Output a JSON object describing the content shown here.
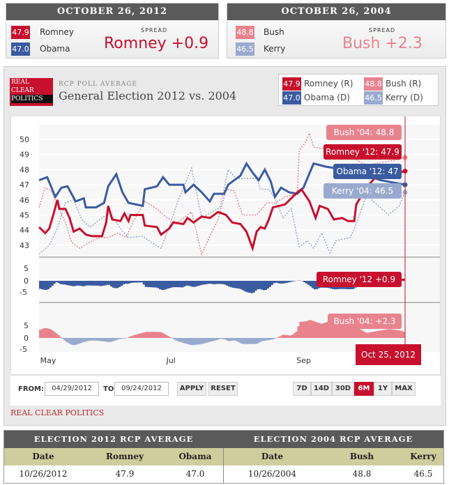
{
  "box2012": {
    "header": "OCTOBER 26, 2012",
    "r_val": "47.9",
    "r_name": "Romney",
    "d_val": "47.0",
    "d_name": "Obama",
    "spread_label": "SPREAD",
    "spread": "Romney +0.9"
  },
  "box2004": {
    "header": "OCTOBER 26, 2004",
    "r_val": "48.8",
    "r_name": "Bush",
    "d_val": "46.5",
    "d_name": "Kerry",
    "spread_label": "SPREAD",
    "spread": "Bush +2.3"
  },
  "panel": {
    "logo": [
      "REAL",
      "CLEAR",
      "POLITICS"
    ],
    "subtitle": "RCP POLL AVERAGE",
    "title": "General Election 2012 vs. 2004",
    "legend": [
      {
        "val": "47.9",
        "name": "Romney (R)",
        "color": "#c8102e"
      },
      {
        "val": "48.8",
        "name": "Bush (R)",
        "color": "#e8838e"
      },
      {
        "val": "47.0",
        "name": "Obama (D)",
        "color": "#3a5ba0"
      },
      {
        "val": "46.5",
        "name": "Kerry (D)",
        "color": "#9aaace"
      }
    ]
  },
  "controls": {
    "from_label": "FROM:",
    "from": "04/29/2012",
    "to_label": "TO:",
    "to": "09/24/2012",
    "apply": "APPLY",
    "reset": "RESET",
    "ranges": [
      "7D",
      "14D",
      "30D",
      "6M",
      "1Y",
      "MAX"
    ],
    "active_range": "6M"
  },
  "footer_link": "REAL CLEAR POLITICS",
  "table": {
    "h2012": "ELECTION 2012 RCP AVERAGE",
    "h2004": "ELECTION 2004 RCP AVERAGE",
    "cols": [
      "Date",
      "Romney",
      "Obama",
      "Date",
      "Bush",
      "Kerry"
    ],
    "row": [
      "10/26/2012",
      "47.9",
      "47.0",
      "10/26/2004",
      "48.8",
      "46.5"
    ]
  },
  "colors": {
    "romney": "#c8102e",
    "obama": "#3a5ba0",
    "bush": "#e8838e",
    "kerry": "#9aaace"
  },
  "chart_data": {
    "type": "line",
    "x_unit": "days since Apr 29",
    "xlim": [
      0,
      180
    ],
    "ylim": [
      42.3,
      50.5
    ],
    "yticks": [
      43,
      44,
      45,
      46,
      47,
      48,
      49,
      50
    ],
    "xticks": [
      {
        "label": "May",
        "day": 4
      },
      {
        "label": "Jul",
        "day": 66
      },
      {
        "label": "Sep",
        "day": 130
      }
    ],
    "spread_ticks": [
      "5",
      "0",
      "-5"
    ],
    "cursor_label": "Oct 25, 2012",
    "tooltips": {
      "bush": "Bush '04: 48.8",
      "romney": "Romney '12: 47.9",
      "obama": "Obama '12: 47",
      "kerry": "Kerry '04: 46.5",
      "romney_spread": "Romney '12 +0.9",
      "bush_spread": "Bush '04: +2.3"
    },
    "series": [
      {
        "name": "Obama '12",
        "key": "obama",
        "style": "solid",
        "points": [
          [
            0,
            47.3
          ],
          [
            4,
            47.5
          ],
          [
            8,
            46.2
          ],
          [
            11,
            46.8
          ],
          [
            14,
            46.9
          ],
          [
            18,
            45.9
          ],
          [
            22,
            46.1
          ],
          [
            23,
            45.5
          ],
          [
            28,
            45.5
          ],
          [
            32,
            45.8
          ],
          [
            34,
            46.9
          ],
          [
            38,
            47.7
          ],
          [
            41,
            46.5
          ],
          [
            44,
            45.8
          ],
          [
            51,
            45.6
          ],
          [
            52,
            46.7
          ],
          [
            58,
            46.9
          ],
          [
            61,
            47.5
          ],
          [
            64,
            47.0
          ],
          [
            71,
            47.0
          ],
          [
            72,
            46.5
          ],
          [
            76,
            47.0
          ],
          [
            80,
            46.5
          ],
          [
            84,
            45.9
          ],
          [
            86,
            46.4
          ],
          [
            91,
            46.4
          ],
          [
            93,
            47.0
          ],
          [
            99,
            47.6
          ],
          [
            102,
            48.4
          ],
          [
            105,
            47.8
          ],
          [
            108,
            47.3
          ],
          [
            111,
            48.0
          ],
          [
            114,
            47.2
          ],
          [
            116,
            46.2
          ],
          [
            119,
            46.8
          ],
          [
            123,
            46.5
          ],
          [
            127,
            46.4
          ],
          [
            130,
            46.8
          ],
          [
            135,
            48.4
          ],
          [
            141,
            48.2
          ],
          [
            154,
            47.9
          ],
          [
            168,
            47.3
          ],
          [
            180,
            47.0
          ]
        ]
      },
      {
        "name": "Romney '12",
        "key": "romney",
        "style": "solid",
        "points": [
          [
            0,
            44.2
          ],
          [
            3,
            43.8
          ],
          [
            5,
            44.1
          ],
          [
            7,
            45.0
          ],
          [
            9,
            46.0
          ],
          [
            10,
            45.4
          ],
          [
            13,
            45.4
          ],
          [
            15,
            44.8
          ],
          [
            17,
            43.9
          ],
          [
            20,
            44.1
          ],
          [
            23,
            43.7
          ],
          [
            26,
            43.6
          ],
          [
            31,
            43.6
          ],
          [
            33,
            44.5
          ],
          [
            34,
            45.6
          ],
          [
            36,
            44.7
          ],
          [
            40,
            44.6
          ],
          [
            42,
            45.1
          ],
          [
            44,
            44.6
          ],
          [
            45,
            45.0
          ],
          [
            51,
            45.0
          ],
          [
            52,
            44.3
          ],
          [
            58,
            44.2
          ],
          [
            60,
            43.7
          ],
          [
            64,
            44.1
          ],
          [
            66,
            44.5
          ],
          [
            71,
            44.4
          ],
          [
            73,
            44.8
          ],
          [
            76,
            44.5
          ],
          [
            80,
            44.9
          ],
          [
            84,
            44.8
          ],
          [
            88,
            45.2
          ],
          [
            92,
            45.0
          ],
          [
            95,
            44.5
          ],
          [
            99,
            44.4
          ],
          [
            102,
            43.9
          ],
          [
            105,
            42.8
          ],
          [
            107,
            43.9
          ],
          [
            109,
            44.2
          ],
          [
            111,
            44.1
          ],
          [
            113,
            44.7
          ],
          [
            115,
            45.5
          ],
          [
            118,
            45.6
          ],
          [
            121,
            45.7
          ],
          [
            127,
            46.5
          ],
          [
            129,
            46.7
          ],
          [
            133,
            45.9
          ],
          [
            136,
            44.8
          ],
          [
            138,
            45.6
          ],
          [
            142,
            45.4
          ],
          [
            145,
            44.7
          ],
          [
            149,
            44.8
          ],
          [
            152,
            44.6
          ],
          [
            155,
            44.6
          ],
          [
            156,
            45.7
          ],
          [
            161,
            46.8
          ],
          [
            168,
            47.9
          ],
          [
            177,
            47.8
          ],
          [
            180,
            47.9
          ]
        ]
      },
      {
        "name": "Bush '04",
        "key": "bush",
        "style": "dotted",
        "points": [
          [
            0,
            45.5
          ],
          [
            3,
            46.8
          ],
          [
            6,
            46.6
          ],
          [
            10,
            45.3
          ],
          [
            13,
            44.5
          ],
          [
            16,
            43.2
          ],
          [
            20,
            42.8
          ],
          [
            25,
            43.2
          ],
          [
            29,
            43.5
          ],
          [
            34,
            43.5
          ],
          [
            39,
            43.8
          ],
          [
            43,
            43.5
          ],
          [
            46,
            44.5
          ],
          [
            52,
            45.9
          ],
          [
            58,
            45.4
          ],
          [
            63,
            44.8
          ],
          [
            68,
            44.5
          ],
          [
            75,
            45.2
          ],
          [
            80,
            42.4
          ],
          [
            84,
            43.6
          ],
          [
            88,
            44.7
          ],
          [
            92,
            46.7
          ],
          [
            96,
            46.6
          ],
          [
            100,
            45.0
          ],
          [
            107,
            45.0
          ],
          [
            112,
            45.8
          ],
          [
            116,
            45.8
          ],
          [
            121,
            46.2
          ],
          [
            127,
            46.4
          ],
          [
            128,
            49.3
          ],
          [
            131,
            49.8
          ],
          [
            133,
            50.4
          ],
          [
            135,
            49.5
          ],
          [
            148,
            49.2
          ],
          [
            161,
            48.3
          ],
          [
            174,
            48.6
          ],
          [
            180,
            48.8
          ]
        ]
      },
      {
        "name": "Kerry '04",
        "key": "kerry",
        "style": "dotted",
        "points": [
          [
            0,
            42.4
          ],
          [
            5,
            43.0
          ],
          [
            9,
            44.1
          ],
          [
            13,
            45.8
          ],
          [
            17,
            46.0
          ],
          [
            21,
            44.7
          ],
          [
            25,
            44.2
          ],
          [
            30,
            44.7
          ],
          [
            35,
            45.2
          ],
          [
            40,
            44.1
          ],
          [
            44,
            43.5
          ],
          [
            51,
            43.6
          ],
          [
            55,
            43.2
          ],
          [
            60,
            42.8
          ],
          [
            64,
            44.2
          ],
          [
            68,
            45.8
          ],
          [
            75,
            48.1
          ],
          [
            80,
            44.8
          ],
          [
            85,
            45.2
          ],
          [
            89,
            45.5
          ],
          [
            93,
            48.0
          ],
          [
            97,
            47.4
          ],
          [
            107,
            47.4
          ],
          [
            109,
            46.7
          ],
          [
            113,
            46.7
          ],
          [
            116,
            46.1
          ],
          [
            120,
            44.8
          ],
          [
            124,
            45.4
          ],
          [
            128,
            42.9
          ],
          [
            132,
            43.3
          ],
          [
            135,
            42.8
          ],
          [
            139,
            43.8
          ],
          [
            143,
            42.5
          ],
          [
            146,
            43.3
          ],
          [
            153,
            43.5
          ],
          [
            156,
            44.4
          ],
          [
            161,
            46.3
          ],
          [
            172,
            45.0
          ],
          [
            177,
            45.6
          ],
          [
            180,
            46.5
          ]
        ]
      }
    ]
  }
}
